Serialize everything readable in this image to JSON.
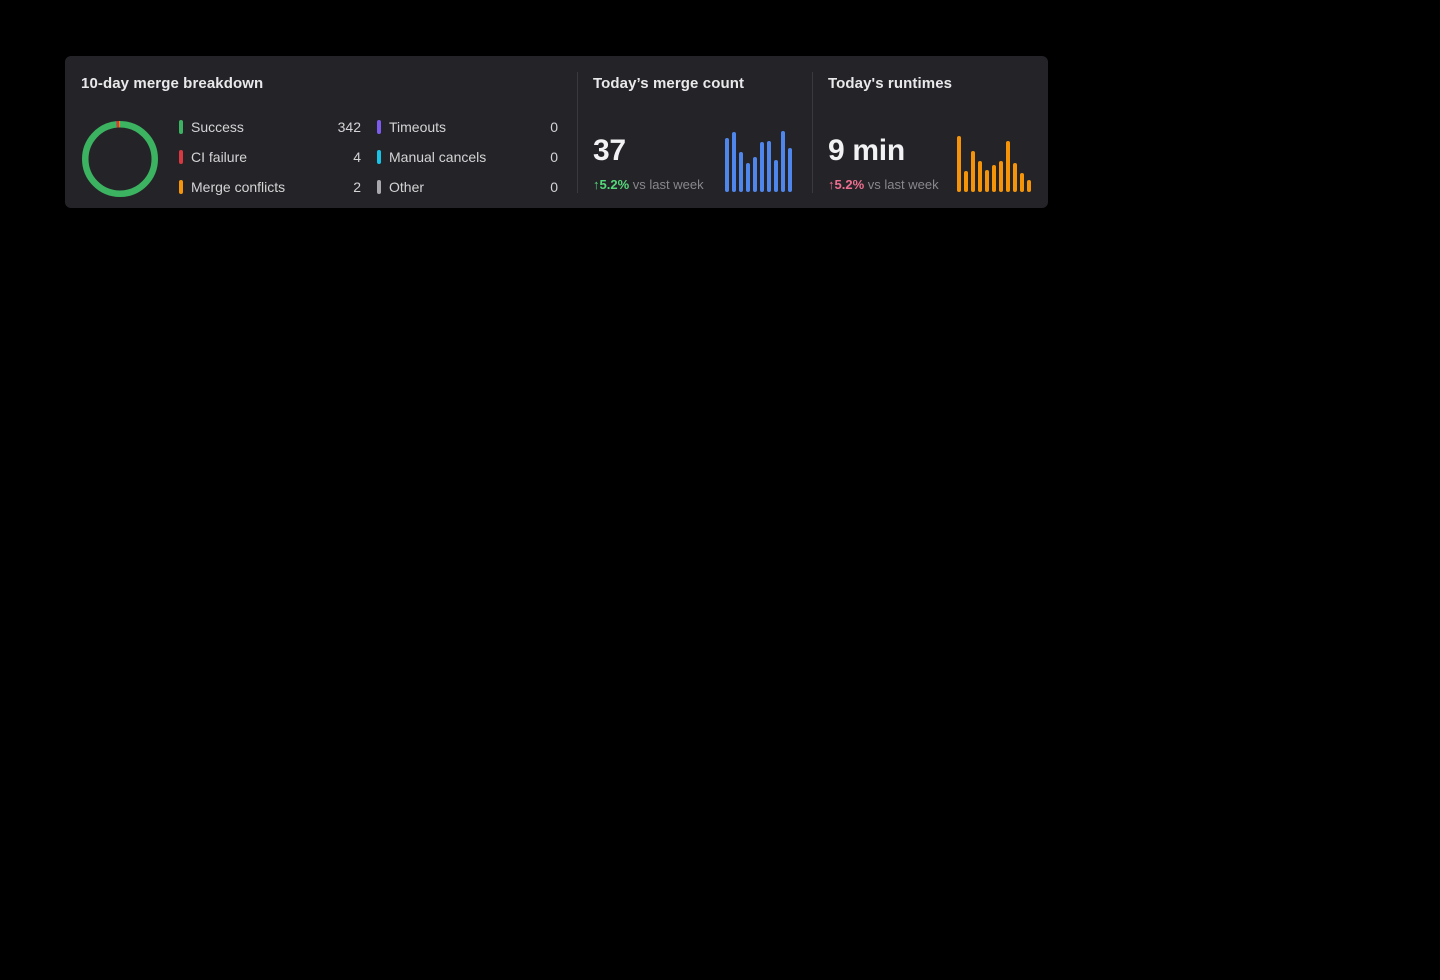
{
  "page": {
    "background": "#000000"
  },
  "panel": {
    "background": "#242428",
    "divider_color": "#3a3a3e"
  },
  "chart_data": [
    {
      "type": "pie",
      "variant": "donut",
      "title": "10-day merge breakdown",
      "labels": [
        "Success",
        "CI failure",
        "Merge conflicts",
        "Timeouts",
        "Manual cancels",
        "Other"
      ],
      "values": [
        342,
        4,
        2,
        0,
        0,
        0
      ],
      "colors": [
        "#3bb360",
        "#d8383f",
        "#f5960a",
        "#7d5bef",
        "#19c3e8",
        "#a9a9ad"
      ],
      "legend_position": "right"
    },
    {
      "type": "bar",
      "title": "Today’s merge count",
      "metric_value": "37",
      "delta": "↑5.2%",
      "delta_color": "#55d87a",
      "comparison": "vs last week",
      "values": [
        54,
        60,
        40,
        29,
        35,
        50,
        51,
        32,
        61,
        44
      ],
      "color": "#4f86ec"
    },
    {
      "type": "bar",
      "title": "Today's runtimes",
      "metric_value": "9 min",
      "delta": "↑5.2%",
      "delta_color": "#ef6f90",
      "comparison": "vs last week",
      "values": [
        56,
        21,
        41,
        31,
        22,
        27,
        31,
        51,
        29,
        19,
        12
      ],
      "color": "#f59409"
    }
  ]
}
